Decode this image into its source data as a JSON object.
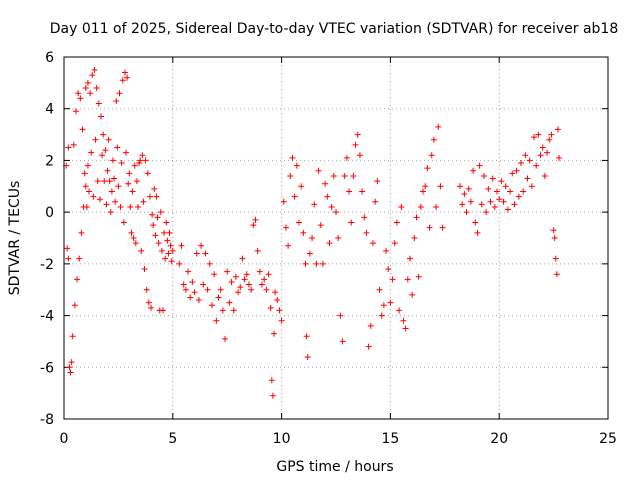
{
  "chart_data": {
    "type": "scatter",
    "title": "Day 011 of 2025, Sidereal Day-to-day VTEC variation (SDTVAR) for receiver ab18",
    "xlabel": "GPS time / hours",
    "ylabel": "SDTVAR / TECUs",
    "xlim": [
      0,
      25
    ],
    "ylim": [
      -8,
      6
    ],
    "xticks": [
      0,
      5,
      10,
      15,
      20,
      25
    ],
    "yticks": [
      -8,
      -6,
      -4,
      -2,
      0,
      2,
      4,
      6
    ],
    "grid": true,
    "marker": "+",
    "series": [
      {
        "name": "SDTVAR ab18",
        "color": "#ff0000",
        "points": [
          [
            0.1,
            1.8
          ],
          [
            0.15,
            -1.4
          ],
          [
            0.2,
            2.5
          ],
          [
            0.2,
            -1.8
          ],
          [
            0.25,
            -6.0
          ],
          [
            0.3,
            -6.2
          ],
          [
            0.35,
            -5.8
          ],
          [
            0.4,
            -4.8
          ],
          [
            0.45,
            2.6
          ],
          [
            0.5,
            -3.6
          ],
          [
            0.55,
            3.9
          ],
          [
            0.6,
            -2.6
          ],
          [
            0.65,
            4.6
          ],
          [
            0.7,
            -1.8
          ],
          [
            0.75,
            4.4
          ],
          [
            0.8,
            -0.8
          ],
          [
            0.85,
            3.2
          ],
          [
            0.9,
            0.2
          ],
          [
            0.95,
            1.5
          ],
          [
            1.0,
            4.8
          ],
          [
            1.0,
            1.0
          ],
          [
            1.05,
            0.2
          ],
          [
            1.1,
            5.0
          ],
          [
            1.1,
            1.8
          ],
          [
            1.15,
            0.8
          ],
          [
            1.2,
            4.6
          ],
          [
            1.25,
            2.3
          ],
          [
            1.3,
            5.3
          ],
          [
            1.35,
            0.6
          ],
          [
            1.4,
            5.5
          ],
          [
            1.45,
            2.8
          ],
          [
            1.5,
            4.8
          ],
          [
            1.55,
            1.2
          ],
          [
            1.6,
            4.2
          ],
          [
            1.65,
            0.5
          ],
          [
            1.7,
            3.7
          ],
          [
            1.75,
            2.2
          ],
          [
            1.8,
            3.0
          ],
          [
            1.85,
            1.2
          ],
          [
            1.9,
            2.4
          ],
          [
            1.95,
            0.3
          ],
          [
            2.0,
            1.6
          ],
          [
            2.05,
            2.8
          ],
          [
            2.1,
            1.2
          ],
          [
            2.15,
            0.0
          ],
          [
            2.2,
            0.8
          ],
          [
            2.25,
            2.0
          ],
          [
            2.3,
            1.3
          ],
          [
            2.35,
            0.4
          ],
          [
            2.4,
            4.3
          ],
          [
            2.45,
            2.5
          ],
          [
            2.5,
            1.0
          ],
          [
            2.55,
            4.6
          ],
          [
            2.6,
            0.2
          ],
          [
            2.65,
            1.9
          ],
          [
            2.7,
            5.1
          ],
          [
            2.75,
            -0.4
          ],
          [
            2.8,
            5.4
          ],
          [
            2.85,
            2.3
          ],
          [
            2.9,
            5.2
          ],
          [
            2.95,
            1.1
          ],
          [
            3.0,
            1.5
          ],
          [
            3.05,
            0.2
          ],
          [
            3.1,
            -0.8
          ],
          [
            3.15,
            0.8
          ],
          [
            3.2,
            -1.0
          ],
          [
            3.25,
            1.8
          ],
          [
            3.3,
            -1.2
          ],
          [
            3.35,
            1.2
          ],
          [
            3.4,
            0.2
          ],
          [
            3.45,
            1.9
          ],
          [
            3.5,
            2.0
          ],
          [
            3.55,
            -1.5
          ],
          [
            3.6,
            2.2
          ],
          [
            3.65,
            0.4
          ],
          [
            3.7,
            -2.2
          ],
          [
            3.75,
            2.0
          ],
          [
            3.8,
            -3.0
          ],
          [
            3.85,
            1.5
          ],
          [
            3.9,
            -3.5
          ],
          [
            3.95,
            0.6
          ],
          [
            4.0,
            -3.7
          ],
          [
            4.05,
            -0.1
          ],
          [
            4.1,
            -0.5
          ],
          [
            4.15,
            0.9
          ],
          [
            4.2,
            -0.9
          ],
          [
            4.25,
            0.6
          ],
          [
            4.3,
            -0.2
          ],
          [
            4.35,
            -1.2
          ],
          [
            4.4,
            -3.8
          ],
          [
            4.45,
            0.0
          ],
          [
            4.5,
            -1.5
          ],
          [
            4.55,
            -3.8
          ],
          [
            4.6,
            -0.8
          ],
          [
            4.65,
            -1.8
          ],
          [
            4.7,
            -0.4
          ],
          [
            4.75,
            -1.1
          ],
          [
            4.8,
            -1.6
          ],
          [
            4.85,
            -0.8
          ],
          [
            4.9,
            -1.3
          ],
          [
            4.95,
            -1.9
          ],
          [
            5.0,
            -1.5
          ],
          [
            5.3,
            -2.0
          ],
          [
            5.4,
            -1.3
          ],
          [
            5.5,
            -2.8
          ],
          [
            5.6,
            -3.0
          ],
          [
            5.7,
            -2.3
          ],
          [
            5.8,
            -3.3
          ],
          [
            5.9,
            -2.7
          ],
          [
            6.0,
            -3.1
          ],
          [
            6.1,
            -1.6
          ],
          [
            6.2,
            -3.4
          ],
          [
            6.3,
            -1.3
          ],
          [
            6.4,
            -2.8
          ],
          [
            6.5,
            -1.6
          ],
          [
            6.6,
            -3.0
          ],
          [
            6.7,
            -2.0
          ],
          [
            6.8,
            -3.6
          ],
          [
            6.9,
            -2.4
          ],
          [
            7.0,
            -4.2
          ],
          [
            7.1,
            -3.3
          ],
          [
            7.2,
            -3.0
          ],
          [
            7.3,
            -3.8
          ],
          [
            7.4,
            -4.9
          ],
          [
            7.5,
            -2.3
          ],
          [
            7.6,
            -3.5
          ],
          [
            7.7,
            -2.7
          ],
          [
            7.8,
            -3.8
          ],
          [
            7.9,
            -2.5
          ],
          [
            8.0,
            -3.1
          ],
          [
            8.1,
            -2.9
          ],
          [
            8.2,
            -1.8
          ],
          [
            8.3,
            -2.6
          ],
          [
            8.4,
            -2.4
          ],
          [
            8.5,
            -2.8
          ],
          [
            8.6,
            -3.0
          ],
          [
            8.7,
            -0.5
          ],
          [
            8.8,
            -0.3
          ],
          [
            8.9,
            -1.5
          ],
          [
            9.0,
            -2.3
          ],
          [
            9.1,
            -2.8
          ],
          [
            9.2,
            -2.6
          ],
          [
            9.3,
            -3.0
          ],
          [
            9.4,
            -2.4
          ],
          [
            9.5,
            -3.7
          ],
          [
            9.55,
            -6.5
          ],
          [
            9.6,
            -7.1
          ],
          [
            9.65,
            -4.7
          ],
          [
            9.7,
            -3.1
          ],
          [
            9.8,
            -3.4
          ],
          [
            9.9,
            -3.8
          ],
          [
            10.0,
            -4.2
          ],
          [
            10.1,
            0.4
          ],
          [
            10.2,
            -0.6
          ],
          [
            10.3,
            -1.3
          ],
          [
            10.4,
            1.4
          ],
          [
            10.5,
            2.1
          ],
          [
            10.6,
            0.6
          ],
          [
            10.7,
            1.8
          ],
          [
            10.8,
            -0.4
          ],
          [
            10.9,
            1.0
          ],
          [
            11.0,
            -0.8
          ],
          [
            11.1,
            -2.0
          ],
          [
            11.15,
            -4.8
          ],
          [
            11.2,
            -5.6
          ],
          [
            11.3,
            -1.6
          ],
          [
            11.4,
            -1.0
          ],
          [
            11.5,
            0.3
          ],
          [
            11.6,
            -2.0
          ],
          [
            11.7,
            1.6
          ],
          [
            11.8,
            -0.5
          ],
          [
            11.9,
            -2.0
          ],
          [
            12.0,
            1.1
          ],
          [
            12.1,
            0.6
          ],
          [
            12.2,
            -1.2
          ],
          [
            12.3,
            0.2
          ],
          [
            12.4,
            1.4
          ],
          [
            12.5,
            0.0
          ],
          [
            12.6,
            -1.0
          ],
          [
            12.7,
            -4.0
          ],
          [
            12.8,
            -5.0
          ],
          [
            12.9,
            1.4
          ],
          [
            13.0,
            2.1
          ],
          [
            13.1,
            0.8
          ],
          [
            13.2,
            -0.4
          ],
          [
            13.3,
            1.4
          ],
          [
            13.4,
            2.6
          ],
          [
            13.5,
            3.0
          ],
          [
            13.6,
            2.2
          ],
          [
            13.7,
            0.8
          ],
          [
            13.8,
            -0.2
          ],
          [
            13.9,
            -0.8
          ],
          [
            14.0,
            -5.2
          ],
          [
            14.1,
            -4.4
          ],
          [
            14.2,
            -1.2
          ],
          [
            14.3,
            0.4
          ],
          [
            14.4,
            1.2
          ],
          [
            14.5,
            -3.0
          ],
          [
            14.6,
            -4.0
          ],
          [
            14.7,
            -3.6
          ],
          [
            14.8,
            -1.5
          ],
          [
            14.9,
            -2.2
          ],
          [
            15.0,
            -3.5
          ],
          [
            15.1,
            -2.6
          ],
          [
            15.2,
            -1.2
          ],
          [
            15.3,
            -0.4
          ],
          [
            15.4,
            -3.8
          ],
          [
            15.5,
            0.2
          ],
          [
            15.6,
            -4.2
          ],
          [
            15.7,
            -4.5
          ],
          [
            15.8,
            -2.6
          ],
          [
            15.9,
            -1.8
          ],
          [
            16.0,
            -3.2
          ],
          [
            16.1,
            -1.0
          ],
          [
            16.2,
            -0.2
          ],
          [
            16.3,
            -2.5
          ],
          [
            16.4,
            0.2
          ],
          [
            16.5,
            0.8
          ],
          [
            16.6,
            1.0
          ],
          [
            16.7,
            1.7
          ],
          [
            16.8,
            -0.6
          ],
          [
            16.9,
            2.2
          ],
          [
            17.0,
            2.8
          ],
          [
            17.1,
            0.2
          ],
          [
            17.2,
            3.3
          ],
          [
            17.3,
            1.0
          ],
          [
            17.4,
            -0.6
          ],
          [
            18.2,
            1.0
          ],
          [
            18.3,
            0.3
          ],
          [
            18.4,
            0.7
          ],
          [
            18.5,
            0.0
          ],
          [
            18.6,
            0.9
          ],
          [
            18.7,
            0.4
          ],
          [
            18.8,
            1.6
          ],
          [
            18.9,
            -0.4
          ],
          [
            19.0,
            -0.8
          ],
          [
            19.1,
            1.8
          ],
          [
            19.2,
            0.3
          ],
          [
            19.3,
            1.4
          ],
          [
            19.4,
            0.0
          ],
          [
            19.5,
            0.9
          ],
          [
            19.6,
            0.4
          ],
          [
            19.7,
            1.3
          ],
          [
            19.8,
            0.2
          ],
          [
            19.9,
            0.8
          ],
          [
            20.0,
            0.5
          ],
          [
            20.1,
            1.2
          ],
          [
            20.2,
            0.4
          ],
          [
            20.3,
            1.0
          ],
          [
            20.4,
            0.1
          ],
          [
            20.5,
            0.8
          ],
          [
            20.6,
            1.5
          ],
          [
            20.7,
            0.3
          ],
          [
            20.8,
            1.6
          ],
          [
            20.9,
            0.6
          ],
          [
            21.0,
            1.9
          ],
          [
            21.1,
            0.8
          ],
          [
            21.2,
            2.2
          ],
          [
            21.3,
            1.3
          ],
          [
            21.4,
            2.0
          ],
          [
            21.5,
            1.0
          ],
          [
            21.6,
            2.9
          ],
          [
            21.7,
            1.8
          ],
          [
            21.8,
            3.0
          ],
          [
            21.9,
            2.2
          ],
          [
            22.0,
            2.5
          ],
          [
            22.1,
            1.4
          ],
          [
            22.2,
            2.3
          ],
          [
            22.3,
            2.8
          ],
          [
            22.4,
            3.0
          ],
          [
            22.5,
            -0.7
          ],
          [
            22.55,
            -1.0
          ],
          [
            22.6,
            -1.8
          ],
          [
            22.65,
            -2.4
          ],
          [
            22.7,
            3.2
          ],
          [
            22.75,
            2.1
          ]
        ]
      }
    ]
  }
}
